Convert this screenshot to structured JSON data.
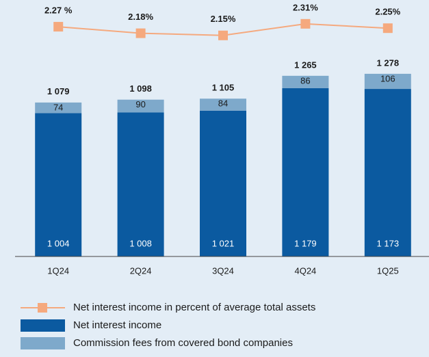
{
  "chart_data": {
    "type": "bar",
    "stacked": true,
    "categories": [
      "1Q24",
      "2Q24",
      "3Q24",
      "4Q24",
      "1Q25"
    ],
    "series": [
      {
        "name": "Net interest income in percent of average total assets",
        "type": "line",
        "axis": "y2",
        "color": "#f5a97e",
        "values": [
          2.27,
          2.18,
          2.15,
          2.31,
          2.25
        ],
        "value_labels": [
          "2.27 %",
          "2.18%",
          "2.15%",
          "2.31%",
          "2.25%"
        ]
      },
      {
        "name": "Net interest income",
        "type": "bar",
        "color": "#0b5aa0",
        "values": [
          1004,
          1008,
          1021,
          1179,
          1173
        ],
        "value_labels": [
          "1 004",
          "1 008",
          "1 021",
          "1 179",
          "1 173"
        ]
      },
      {
        "name": "Commission fees from covered bond companies",
        "type": "bar",
        "color": "#7ea9cb",
        "values": [
          74,
          90,
          84,
          86,
          106
        ]
      }
    ],
    "totals": [
      1079,
      1098,
      1105,
      1265,
      1278
    ],
    "total_labels": [
      "1 079",
      "1 098",
      "1 105",
      "1 265",
      "1 278"
    ],
    "ylim": [
      0,
      1700
    ],
    "y2lim": [
      -0.9,
      2.45
    ]
  }
}
